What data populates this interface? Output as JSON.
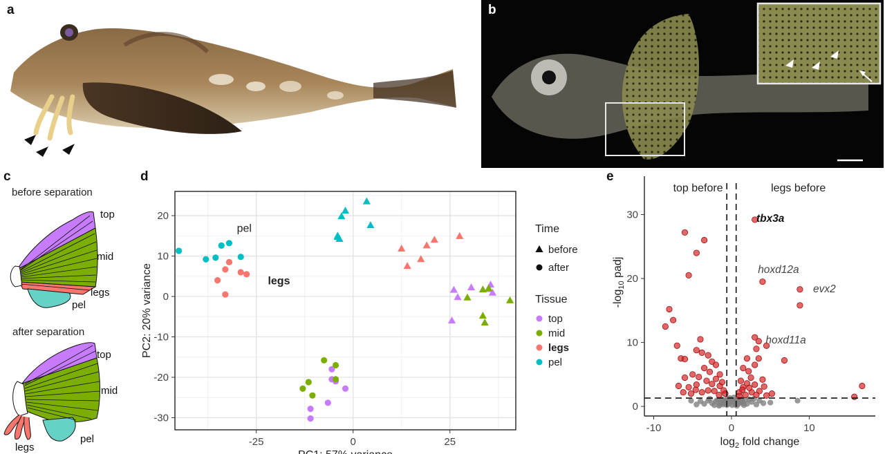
{
  "panels": {
    "a": {
      "letter": "a"
    },
    "b": {
      "letter": "b"
    },
    "c": {
      "letter": "c",
      "before_title": "before separation",
      "after_title": "after separation",
      "labels": {
        "top": "top",
        "mid": "mid",
        "legs": "legs",
        "pel": "pel"
      }
    },
    "d": {
      "letter": "d"
    },
    "e": {
      "letter": "e"
    }
  },
  "colors": {
    "top": "#c77cff",
    "mid": "#7cae00",
    "legs": "#f8766d",
    "pel": "#00bfc4",
    "volcano_sig": "#d62728",
    "volcano_ns": "#808080"
  },
  "chart_data": [
    {
      "type": "scatter",
      "panel": "d",
      "xlabel": "PC1: 57% variance",
      "ylabel": "PC2: 20% variance",
      "xlim": [
        -46,
        42
      ],
      "ylim": [
        -33,
        26
      ],
      "xticks": [
        -25,
        0,
        25
      ],
      "yticks": [
        -30,
        -20,
        -10,
        0,
        10,
        20
      ],
      "grid": true,
      "annotations": [
        {
          "text": "pel",
          "x": -30,
          "y": 16
        },
        {
          "text": "legs",
          "x": -22,
          "y": 3,
          "bold": true
        }
      ],
      "legend": {
        "placement": "right",
        "time_title": "Time",
        "time_items": [
          {
            "label": "before",
            "shape": "triangle"
          },
          {
            "label": "after",
            "shape": "circle"
          }
        ],
        "tissue_title": "Tissue",
        "tissue_items": [
          {
            "label": "top",
            "key": "top"
          },
          {
            "label": "mid",
            "key": "mid"
          },
          {
            "label": "legs",
            "key": "legs",
            "bold": true
          },
          {
            "label": "pel",
            "key": "pel"
          }
        ]
      },
      "series": [
        {
          "name": "pel",
          "time": "after",
          "points": [
            [
              -45,
              11.3
            ],
            [
              -38,
              9.2
            ],
            [
              -35.5,
              9.6
            ],
            [
              -34,
              12.6
            ],
            [
              -32,
              13.2
            ],
            [
              -29,
              9.8
            ]
          ]
        },
        {
          "name": "legs",
          "time": "after",
          "points": [
            [
              -35,
              4
            ],
            [
              -33,
              6.7
            ],
            [
              -32,
              8.5
            ],
            [
              -29,
              6
            ],
            [
              -27.5,
              5.5
            ],
            [
              -33,
              0.5
            ]
          ]
        },
        {
          "name": "top",
          "time": "after",
          "points": [
            [
              -5.5,
              -18
            ],
            [
              -5.5,
              -20.5
            ],
            [
              -4.5,
              -21
            ],
            [
              -2,
              -22.8
            ],
            [
              -6.5,
              -26.3
            ],
            [
              -11,
              -27.8
            ],
            [
              -11,
              -30.2
            ]
          ]
        },
        {
          "name": "mid",
          "time": "after",
          "points": [
            [
              -7.5,
              -15.8
            ],
            [
              -4.5,
              -17
            ],
            [
              -11.5,
              -21.2
            ],
            [
              -13,
              -22.8
            ],
            [
              -10.5,
              -24.5
            ],
            [
              -4.5,
              -20.5
            ]
          ]
        },
        {
          "name": "pel",
          "time": "before",
          "points": [
            [
              -2,
              21.2
            ],
            [
              -3,
              19.8
            ],
            [
              -4,
              15
            ],
            [
              -3.5,
              14.2
            ],
            [
              -4,
              14.7
            ],
            [
              3.5,
              23.5
            ],
            [
              4.5,
              17.6
            ]
          ]
        },
        {
          "name": "legs",
          "time": "before",
          "points": [
            [
              12.5,
              11.8
            ],
            [
              14,
              7.5
            ],
            [
              17.5,
              9.2
            ],
            [
              19,
              12.6
            ],
            [
              21,
              14
            ],
            [
              27.5,
              14.9
            ]
          ]
        },
        {
          "name": "top",
          "time": "before",
          "points": [
            [
              26,
              1.6
            ],
            [
              27,
              -0.2
            ],
            [
              30.5,
              2.2
            ],
            [
              35,
              1.8
            ],
            [
              35.5,
              2.9
            ],
            [
              36,
              0.9
            ],
            [
              25.5,
              -6
            ]
          ]
        },
        {
          "name": "mid",
          "time": "before",
          "points": [
            [
              29.5,
              -0.3
            ],
            [
              33.5,
              1.7
            ],
            [
              35,
              2
            ],
            [
              40.5,
              -1
            ],
            [
              33.5,
              -4.8
            ],
            [
              34,
              -6.5
            ]
          ]
        }
      ]
    },
    {
      "type": "scatter",
      "panel": "e",
      "xlabel": "log2 fold change",
      "ylabel": "-log10 padj",
      "xlim": [
        -11.2,
        18.5
      ],
      "ylim": [
        -1.5,
        36
      ],
      "xticks": [
        -10,
        0,
        10
      ],
      "yticks": [
        0,
        10,
        20,
        30
      ],
      "grid": false,
      "region_labels": {
        "left": "top before",
        "right": "legs before"
      },
      "thresholds": {
        "fc": [
          -0.6,
          0.6
        ],
        "padj": 1.3
      },
      "gene_labels": [
        {
          "text": "tbx3a",
          "x": 3.2,
          "y": 29.5,
          "bold": true
        },
        {
          "text": "hoxd12a",
          "x": 3.4,
          "y": 21.5
        },
        {
          "text": "evx2",
          "x": 10.5,
          "y": 18.5
        },
        {
          "text": "hoxd11a",
          "x": 4.4,
          "y": 10.5
        }
      ],
      "significant": [
        [
          3,
          29.2
        ],
        [
          -6,
          27.2
        ],
        [
          -3.5,
          26
        ],
        [
          -4.5,
          24
        ],
        [
          -5.5,
          20.5
        ],
        [
          -8,
          15.2
        ],
        [
          -7.5,
          13.5
        ],
        [
          -8.5,
          12.5
        ],
        [
          4,
          19.5
        ],
        [
          8.8,
          18.3
        ],
        [
          8.8,
          15.8
        ],
        [
          3,
          10.8
        ],
        [
          3.5,
          10.2
        ],
        [
          4.5,
          9.5
        ],
        [
          3.2,
          9
        ],
        [
          -4,
          10.5
        ],
        [
          -4.5,
          8.8
        ],
        [
          -3.8,
          8.4
        ],
        [
          -7,
          9.5
        ],
        [
          -6.5,
          7.5
        ],
        [
          -6,
          7.4
        ],
        [
          -3,
          8
        ],
        [
          -2.5,
          7
        ],
        [
          -2,
          6.5
        ],
        [
          -3.5,
          6
        ],
        [
          -2.8,
          5.4
        ],
        [
          -1.5,
          5
        ],
        [
          -2,
          4.3
        ],
        [
          -3.2,
          4
        ],
        [
          -4.2,
          4.6
        ],
        [
          -5,
          5
        ],
        [
          -6,
          4.5
        ],
        [
          -6.8,
          3.2
        ],
        [
          -5.5,
          3
        ],
        [
          -4.5,
          3.4
        ],
        [
          -2.5,
          3.5
        ],
        [
          -1.5,
          3.2
        ],
        [
          -1,
          2.5
        ],
        [
          -1.6,
          1.8
        ],
        [
          -2.2,
          2.4
        ],
        [
          -3,
          2.5
        ],
        [
          -3.8,
          2.2
        ],
        [
          -4.6,
          2.6
        ],
        [
          -1.2,
          3.8
        ],
        [
          -0.8,
          2
        ],
        [
          -5.2,
          2
        ],
        [
          -6.2,
          2.2
        ],
        [
          1,
          2.2
        ],
        [
          1.5,
          3
        ],
        [
          2,
          3.6
        ],
        [
          2.5,
          4.5
        ],
        [
          1.2,
          4
        ],
        [
          3,
          3.4
        ],
        [
          3.6,
          2.4
        ],
        [
          4.2,
          3.1
        ],
        [
          1.8,
          1.8
        ],
        [
          2.6,
          2.2
        ],
        [
          3.2,
          1.8
        ],
        [
          4.5,
          1.7
        ],
        [
          5.2,
          2
        ],
        [
          2.2,
          5.5
        ],
        [
          3,
          6.5
        ],
        [
          2,
          7.5
        ],
        [
          1.5,
          6
        ],
        [
          3.5,
          7.5
        ],
        [
          6.8,
          7.2
        ],
        [
          4,
          4.2
        ],
        [
          1,
          1.6
        ],
        [
          2.3,
          2.9
        ],
        [
          1.4,
          2.6
        ],
        [
          16.8,
          3.2
        ],
        [
          15.8,
          1.5
        ]
      ],
      "non_significant": [
        [
          -0.3,
          0.4
        ],
        [
          0.2,
          0.8
        ],
        [
          -0.5,
          1.2
        ],
        [
          0.5,
          0.3
        ],
        [
          -1,
          0.6
        ],
        [
          1,
          0.9
        ],
        [
          -1.5,
          0.3
        ],
        [
          1.5,
          0.5
        ],
        [
          -2,
          0.8
        ],
        [
          2,
          0.4
        ],
        [
          -0.8,
          1.0
        ],
        [
          0.8,
          1.2
        ],
        [
          -0.1,
          1.1
        ],
        [
          0.1,
          0.2
        ],
        [
          -1.2,
          1.1
        ],
        [
          1.3,
          1.1
        ],
        [
          -2.5,
          0.5
        ],
        [
          2.6,
          0.7
        ],
        [
          -3,
          0.9
        ],
        [
          3.2,
          0.3
        ],
        [
          -0.4,
          0.7
        ],
        [
          0.4,
          0.6
        ],
        [
          -1.8,
          1.0
        ],
        [
          1.8,
          1.0
        ],
        [
          -3.5,
          0.4
        ],
        [
          3.6,
          0.9
        ],
        [
          -0.6,
          0.2
        ],
        [
          0.7,
          0.1
        ],
        [
          -1.6,
          0.1
        ],
        [
          1.6,
          0.2
        ],
        [
          -2.2,
          0.2
        ],
        [
          2.3,
          1.1
        ],
        [
          -4.0,
          0.8
        ],
        [
          4.1,
          0.5
        ],
        [
          -0.2,
          1.3
        ],
        [
          0.3,
          1.4
        ],
        [
          -0.7,
          0.9
        ],
        [
          0.9,
          0.4
        ],
        [
          -1.1,
          0.3
        ],
        [
          1.1,
          0.6
        ],
        [
          -2.8,
          1.2
        ],
        [
          2.9,
          1.2
        ],
        [
          -4.5,
          0.3
        ],
        [
          -5.2,
          0.9
        ],
        [
          5.0,
          0.6
        ],
        [
          8.5,
          0.9
        ],
        [
          -0.9,
          0.5
        ],
        [
          0.6,
          1.0
        ],
        [
          -1.4,
          0.7
        ],
        [
          1.4,
          0.8
        ]
      ]
    }
  ]
}
